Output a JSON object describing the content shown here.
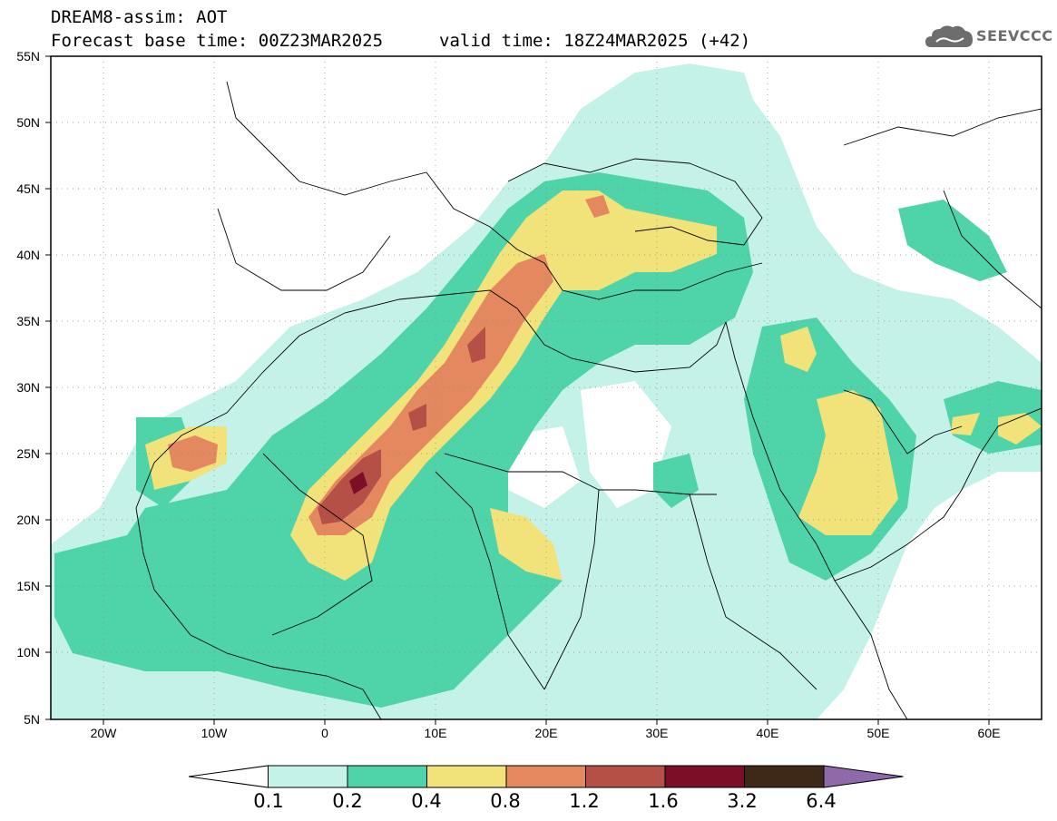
{
  "header": {
    "title_line1": "DREAM8-assim: AOT",
    "base_time": "Forecast base time: 00Z23MAR2025",
    "valid_time": "valid time: 18Z24MAR2025 (+42)"
  },
  "logo": {
    "text": "SEEVCCC",
    "icon": "cloud-icon"
  },
  "map": {
    "region": "North Africa / Mediterranean / Middle East",
    "lat_labels": [
      "55N",
      "50N",
      "45N",
      "40N",
      "35N",
      "30N",
      "25N",
      "20N",
      "15N",
      "10N",
      "5N"
    ],
    "lon_labels": [
      "20W",
      "10W",
      "0",
      "10E",
      "20E",
      "30E",
      "40E",
      "50E",
      "60E"
    ],
    "lat_range": [
      5,
      55
    ],
    "lon_range": [
      -25,
      65
    ],
    "grid": "dotted"
  },
  "colorbar": {
    "levels": [
      "0.1",
      "0.2",
      "0.4",
      "0.8",
      "1.2",
      "1.6",
      "3.2",
      "6.4"
    ],
    "colors": [
      "#c4f2e8",
      "#4fd3a9",
      "#f2e27a",
      "#e4895f",
      "#b45045",
      "#7c0e28",
      "#3e2817",
      "#8f6aab"
    ],
    "colors_all": [
      "#ffffff",
      "#c4f2e8",
      "#4fd3a9",
      "#f2e27a",
      "#e4895f",
      "#b45045",
      "#7c0e28",
      "#3e2817",
      "#8f6aab"
    ]
  }
}
